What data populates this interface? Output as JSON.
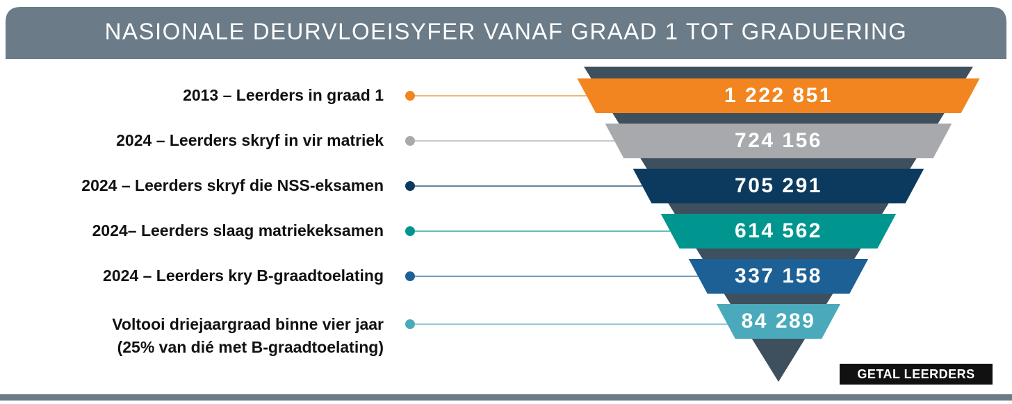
{
  "chart_data": {
    "type": "funnel",
    "title": "NASIONALE DEURVLOEISYFER VANAF GRAAD 1 TOT GRADUERING",
    "categories": [
      "2013 – Leerders in graad 1",
      "2024 – Leerders skryf in vir matriek",
      "2024 – Leerders skryf die NSS-eksamen",
      "2024– Leerders slaag matriekeksamen",
      "2024 – Leerders kry B-graadtoelating",
      [
        "Voltooi driejaargraad binne vier jaar",
        "(25% van dié met B-graadtoelating)"
      ]
    ],
    "values": [
      1222851,
      724156,
      705291,
      614562,
      337158,
      84289
    ],
    "value_labels": [
      "1 222 851",
      "724 156",
      "705 291",
      "614 562",
      "337 158",
      "84 289"
    ],
    "colors": [
      "#f2851f",
      "#a7a9ac",
      "#0c3a5e",
      "#00968f",
      "#1d6096",
      "#4aaabc"
    ],
    "unit_label": "GETAL LEERDERS"
  }
}
